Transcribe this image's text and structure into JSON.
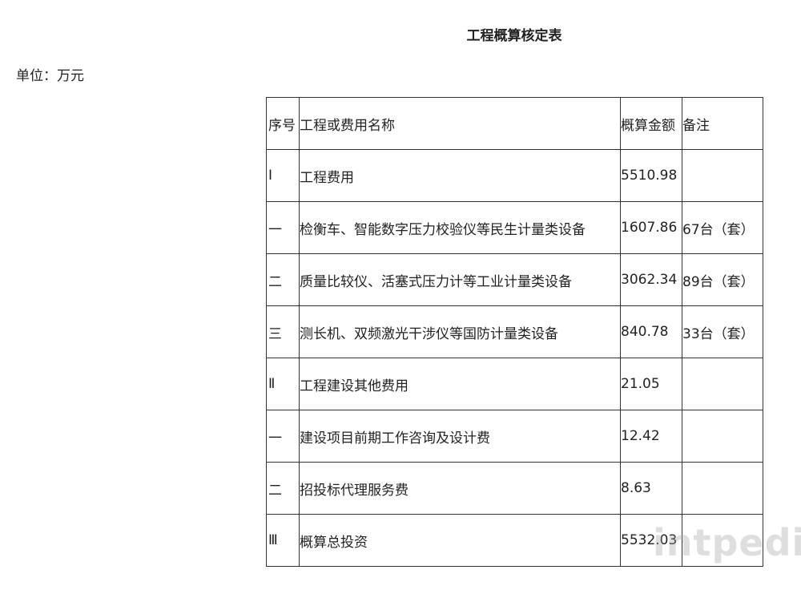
{
  "title": "工程概算核定表",
  "unit": "单位：万元",
  "table": {
    "headers": [
      "序号",
      "工程或费用名称",
      "概算金额",
      "备注"
    ],
    "rows": [
      [
        "Ⅰ",
        "工程费用",
        "5510.98",
        ""
      ],
      [
        "一",
        "检衡车、智能数字压力校验仪等民生计量类设备",
        "1607.86",
        "67台（套）"
      ],
      [
        "二",
        "质量比较仪、活塞式压力计等工业计量类设备",
        "3062.34",
        "89台（套）"
      ],
      [
        "三",
        "测长机、双频激光干涉仪等国防计量类设备",
        "840.78",
        "33台（套）"
      ],
      [
        "Ⅱ",
        "工程建设其他费用",
        "21.05",
        ""
      ],
      [
        "一",
        "建设项目前期工作咨询及设计费",
        "12.42",
        ""
      ],
      [
        "二",
        "招投标代理服务费",
        "8.63",
        ""
      ],
      [
        "Ⅲ",
        "概算总投资",
        "5532.03",
        ""
      ]
    ]
  },
  "watermark": "intpedia"
}
